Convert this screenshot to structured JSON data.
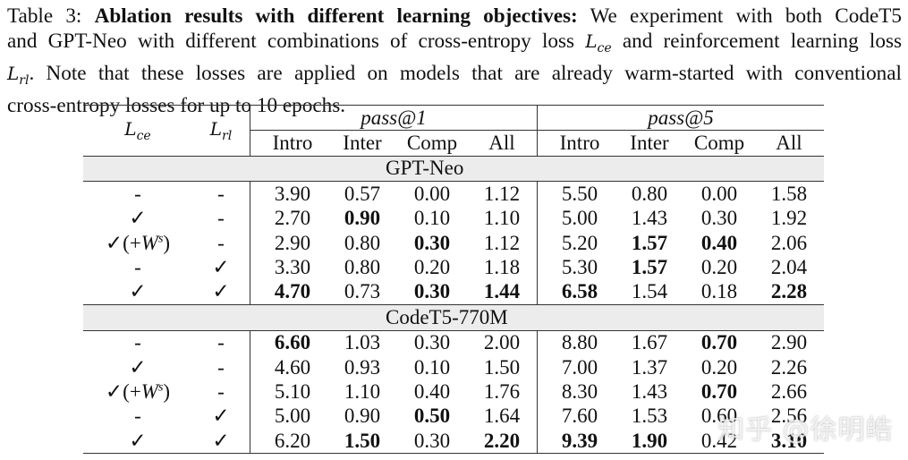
{
  "caption": {
    "label": "Table 3:",
    "title": "Ablation results with different learning objectives:",
    "line1_rest": "We experiment with both CodeT5",
    "line2_a": "and GPT-Neo with different combinations of cross-entropy loss",
    "line2_math": "L",
    "line2_sub": "ce",
    "line2_b": "and reinforcement learning loss",
    "line3_math": "L",
    "line3_sub": "rl",
    "line3_rest": ". Note that these losses are applied on models that are already warm-started with conventional",
    "line4": "cross-entropy losses for up to 10 epochs."
  },
  "table": {
    "col_ce": {
      "symbol": "L",
      "sub": "ce"
    },
    "col_rl": {
      "symbol": "L",
      "sub": "rl"
    },
    "group_headers": [
      "pass@1",
      "pass@5"
    ],
    "sub_headers": [
      "Intro",
      "Inter",
      "Comp",
      "All",
      "Intro",
      "Inter",
      "Comp",
      "All"
    ],
    "sections": [
      {
        "name": "GPT-Neo",
        "rows": [
          {
            "ce": "-",
            "rl": "-",
            "values": [
              "3.90",
              "0.57",
              "0.00",
              "1.12",
              "5.50",
              "0.80",
              "0.00",
              "1.58"
            ],
            "bold": [
              false,
              false,
              false,
              false,
              false,
              false,
              false,
              false
            ]
          },
          {
            "ce": "✓",
            "rl": "-",
            "values": [
              "2.70",
              "0.90",
              "0.10",
              "1.10",
              "5.00",
              "1.43",
              "0.30",
              "1.92"
            ],
            "bold": [
              false,
              true,
              false,
              false,
              false,
              false,
              false,
              false
            ]
          },
          {
            "ce": "✓(+W^s)",
            "rl": "-",
            "values": [
              "2.90",
              "0.80",
              "0.30",
              "1.12",
              "5.20",
              "1.57",
              "0.40",
              "2.06"
            ],
            "bold": [
              false,
              false,
              true,
              false,
              false,
              true,
              true,
              false
            ]
          },
          {
            "ce": "-",
            "rl": "✓",
            "values": [
              "3.30",
              "0.80",
              "0.20",
              "1.18",
              "5.30",
              "1.57",
              "0.20",
              "2.04"
            ],
            "bold": [
              false,
              false,
              false,
              false,
              false,
              true,
              false,
              false
            ]
          },
          {
            "ce": "✓",
            "rl": "✓",
            "values": [
              "4.70",
              "0.73",
              "0.30",
              "1.44",
              "6.58",
              "1.54",
              "0.18",
              "2.28"
            ],
            "bold": [
              true,
              false,
              true,
              true,
              true,
              false,
              false,
              true
            ]
          }
        ]
      },
      {
        "name": "CodeT5-770M",
        "rows": [
          {
            "ce": "-",
            "rl": "-",
            "values": [
              "6.60",
              "1.03",
              "0.30",
              "2.00",
              "8.80",
              "1.67",
              "0.70",
              "2.90"
            ],
            "bold": [
              true,
              false,
              false,
              false,
              false,
              false,
              true,
              false
            ]
          },
          {
            "ce": "✓",
            "rl": "-",
            "values": [
              "4.60",
              "0.93",
              "0.10",
              "1.50",
              "7.00",
              "1.37",
              "0.20",
              "2.26"
            ],
            "bold": [
              false,
              false,
              false,
              false,
              false,
              false,
              false,
              false
            ]
          },
          {
            "ce": "✓(+W^s)",
            "rl": "-",
            "values": [
              "5.10",
              "1.10",
              "0.40",
              "1.76",
              "8.30",
              "1.43",
              "0.70",
              "2.66"
            ],
            "bold": [
              false,
              false,
              false,
              false,
              false,
              false,
              true,
              false
            ]
          },
          {
            "ce": "-",
            "rl": "✓",
            "values": [
              "5.00",
              "0.90",
              "0.50",
              "1.64",
              "7.60",
              "1.53",
              "0.60",
              "2.56"
            ],
            "bold": [
              false,
              false,
              true,
              false,
              false,
              false,
              false,
              false
            ]
          },
          {
            "ce": "✓",
            "rl": "✓",
            "values": [
              "6.20",
              "1.50",
              "0.30",
              "2.20",
              "9.39",
              "1.90",
              "0.42",
              "3.10"
            ],
            "bold": [
              false,
              true,
              false,
              true,
              true,
              true,
              false,
              true
            ]
          }
        ]
      }
    ]
  },
  "watermark": "知乎 @徐明皓"
}
